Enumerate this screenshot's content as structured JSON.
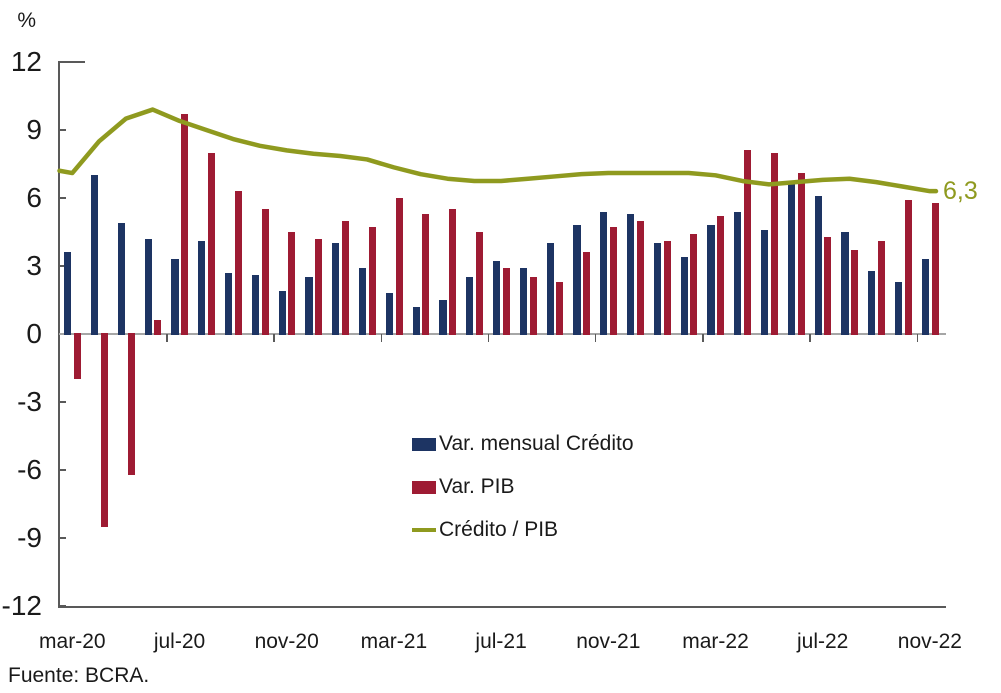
{
  "percent_label": "%",
  "source_note": "Fuente: BCRA.",
  "end_annotation": "6,3",
  "colors": {
    "credit": "#1d3463",
    "pib": "#9e1b33",
    "ratio": "#8f9a1f",
    "axis": "#595959",
    "zero_line": "#a6a6a6",
    "text": "#1a1a1a"
  },
  "legend": [
    {
      "label": "Var. mensual Crédito",
      "type": "bar",
      "color_key": "credit"
    },
    {
      "label": "Var. PIB",
      "type": "bar",
      "color_key": "pib"
    },
    {
      "label": "Crédito / PIB",
      "type": "line",
      "color_key": "ratio"
    }
  ],
  "chart_data": {
    "type": "bar",
    "subtype": "grouped bars with overlaid line",
    "y_axis_unit": "%",
    "ylim": [
      -12,
      12
    ],
    "y_ticks": [
      12,
      9,
      6,
      3,
      0,
      -3,
      -6,
      -9,
      -12
    ],
    "x_tick_labels": [
      "mar-20",
      "jul-20",
      "nov-20",
      "mar-21",
      "jul-21",
      "nov-21",
      "mar-22",
      "jul-22",
      "nov-22"
    ],
    "categories": [
      "mar-20",
      "abr-20",
      "may-20",
      "jun-20",
      "jul-20",
      "ago-20",
      "sep-20",
      "oct-20",
      "nov-20",
      "dic-20",
      "ene-21",
      "feb-21",
      "mar-21",
      "abr-21",
      "may-21",
      "jun-21",
      "jul-21",
      "ago-21",
      "sep-21",
      "oct-21",
      "nov-21",
      "dic-21",
      "ene-22",
      "feb-22",
      "mar-22",
      "abr-22",
      "may-22",
      "jun-22",
      "jul-22",
      "ago-22",
      "sep-22",
      "oct-22",
      "nov-22"
    ],
    "series": [
      {
        "name": "Var. mensual Crédito",
        "type": "bar",
        "color_key": "credit",
        "values": [
          3.6,
          7.0,
          4.9,
          4.2,
          3.3,
          4.1,
          2.7,
          2.6,
          1.9,
          2.5,
          4.0,
          2.9,
          1.8,
          1.2,
          1.5,
          2.5,
          3.2,
          2.9,
          4.0,
          4.8,
          5.4,
          5.3,
          4.0,
          3.4,
          4.8,
          5.4,
          4.6,
          6.7,
          6.1,
          4.5,
          2.8,
          2.3,
          3.3
        ]
      },
      {
        "name": "Var. PIB",
        "type": "bar",
        "color_key": "pib",
        "values": [
          -2.0,
          -8.5,
          -6.2,
          0.6,
          9.7,
          8.0,
          6.3,
          5.5,
          4.5,
          4.2,
          5.0,
          4.7,
          6.0,
          5.3,
          5.5,
          4.5,
          2.9,
          2.5,
          2.3,
          3.6,
          4.7,
          5.0,
          4.1,
          4.4,
          5.2,
          8.1,
          8.0,
          7.1,
          4.3,
          3.7,
          4.1,
          5.9,
          5.8
        ]
      },
      {
        "name": "Crédito / PIB",
        "type": "line",
        "color_key": "ratio",
        "values": [
          7.1,
          8.5,
          9.5,
          9.9,
          9.4,
          9.0,
          8.6,
          8.3,
          8.1,
          7.95,
          7.85,
          7.7,
          7.35,
          7.05,
          6.85,
          6.75,
          6.75,
          6.85,
          6.95,
          7.05,
          7.1,
          7.1,
          7.1,
          7.1,
          7.0,
          6.75,
          6.6,
          6.7,
          6.8,
          6.85,
          6.7,
          6.5,
          6.3
        ]
      }
    ],
    "annotation": {
      "text": "6,3",
      "series": "Crédito / PIB",
      "category": "nov-22",
      "value": 6.3
    },
    "grid": "off",
    "legend_position": "center-inside"
  }
}
